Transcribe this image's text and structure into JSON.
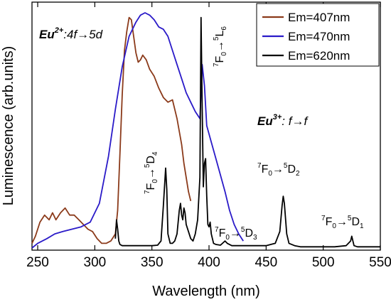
{
  "chart_data": {
    "type": "line",
    "title": "",
    "xlabel": "Wavelength (nm)",
    "ylabel": "Luminescence (arb.units)",
    "xlim": [
      245,
      550
    ],
    "ylim": [
      0,
      1.0
    ],
    "xticks": [
      250,
      300,
      350,
      400,
      450,
      500,
      550
    ],
    "x_tick_labels": [
      "250",
      "300",
      "350",
      "400",
      "450",
      "500",
      "550"
    ],
    "y_tick_labels_shown": false,
    "grid": false,
    "legend_position": "top-right",
    "series": [
      {
        "name": "Em=407nm",
        "color": "#8B3A1A",
        "x": [
          245,
          248,
          252,
          256,
          260,
          263,
          266,
          270,
          274,
          278,
          282,
          286,
          290,
          294,
          298,
          302,
          306,
          310,
          314,
          318,
          320,
          322,
          324,
          326,
          328,
          330,
          332,
          334,
          336,
          338,
          340,
          342,
          345,
          348,
          352,
          356,
          360,
          364,
          368,
          372,
          376,
          378,
          380,
          382,
          384
        ],
        "y": [
          0.02,
          0.05,
          0.11,
          0.14,
          0.12,
          0.15,
          0.12,
          0.15,
          0.17,
          0.14,
          0.14,
          0.12,
          0.1,
          0.08,
          0.07,
          0.04,
          0.02,
          0.02,
          0.03,
          0.06,
          0.16,
          0.4,
          0.65,
          0.84,
          0.92,
          0.98,
          0.97,
          0.9,
          0.83,
          0.79,
          0.8,
          0.82,
          0.8,
          0.76,
          0.73,
          0.68,
          0.64,
          0.62,
          0.63,
          0.55,
          0.44,
          0.36,
          0.3,
          0.24,
          0.2
        ]
      },
      {
        "name": "Em=470nm",
        "color": "#2A1AC8",
        "x": [
          245,
          250,
          258,
          265,
          272,
          280,
          288,
          296,
          304,
          312,
          318,
          324,
          330,
          336,
          340,
          344,
          348,
          352,
          356,
          360,
          364,
          368,
          372,
          376,
          380,
          384,
          388,
          392,
          394,
          396,
          398,
          402,
          406,
          410,
          414,
          418,
          422,
          426,
          430
        ],
        "y": [
          0.0,
          0.02,
          0.04,
          0.06,
          0.07,
          0.08,
          0.09,
          0.11,
          0.19,
          0.39,
          0.59,
          0.77,
          0.9,
          0.96,
          0.99,
          1.0,
          0.99,
          0.97,
          0.94,
          0.93,
          0.9,
          0.84,
          0.78,
          0.72,
          0.66,
          0.62,
          0.58,
          0.55,
          0.78,
          0.69,
          0.52,
          0.45,
          0.38,
          0.31,
          0.24,
          0.16,
          0.1,
          0.06,
          0.03
        ]
      },
      {
        "name": "Em=620nm",
        "color": "#000000",
        "x": [
          318,
          319,
          320,
          321,
          322,
          324,
          330,
          340,
          350,
          355,
          358,
          360,
          362,
          363,
          364,
          366,
          368,
          370,
          372,
          374,
          375,
          376,
          377,
          378,
          379,
          380,
          382,
          384,
          386,
          388,
          390,
          392,
          393,
          394,
          395,
          396,
          397,
          398,
          399,
          400,
          401,
          402,
          403,
          404,
          406,
          410,
          414,
          416,
          420,
          430,
          440,
          450,
          458,
          462,
          464,
          465,
          466,
          468,
          470,
          475,
          480,
          490,
          500,
          510,
          520,
          524,
          525,
          526,
          527,
          530,
          540,
          550
        ],
        "y": [
          0.04,
          0.12,
          0.08,
          0.03,
          0.015,
          0.01,
          0.01,
          0.01,
          0.01,
          0.012,
          0.03,
          0.18,
          0.34,
          0.25,
          0.06,
          0.02,
          0.02,
          0.03,
          0.06,
          0.16,
          0.19,
          0.14,
          0.12,
          0.17,
          0.15,
          0.1,
          0.07,
          0.04,
          0.03,
          0.06,
          0.12,
          0.3,
          0.98,
          0.6,
          0.26,
          0.36,
          0.38,
          0.22,
          0.1,
          0.09,
          0.11,
          0.06,
          0.04,
          0.02,
          0.015,
          0.012,
          0.03,
          0.02,
          0.01,
          0.01,
          0.01,
          0.01,
          0.02,
          0.07,
          0.18,
          0.22,
          0.19,
          0.06,
          0.02,
          0.01,
          0.005,
          0.005,
          0.005,
          0.005,
          0.01,
          0.03,
          0.05,
          0.03,
          0.01,
          0.005,
          0.005,
          0.005
        ]
      }
    ],
    "annotations": [
      "Eu2+:4f→5d",
      "Eu3+: f→f",
      "7F0→5L6",
      "7F0→5D4",
      "7F0→5D3",
      "7F0→5D2",
      "7F0→5D1"
    ]
  }
}
